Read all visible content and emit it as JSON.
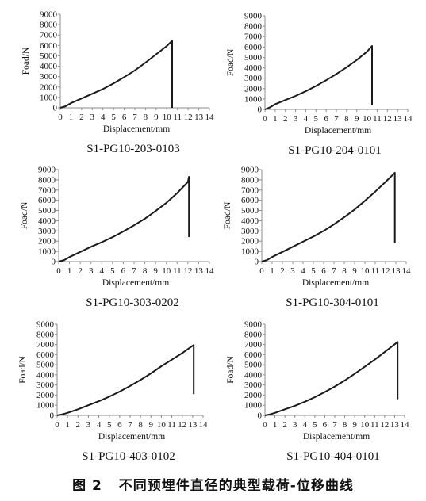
{
  "figure": {
    "number": "图 2",
    "caption": "不同预埋件直径的典型载荷-位移曲线"
  },
  "colors": {
    "line": "#1a1a1a",
    "axis": "#8c8c8c",
    "text": "#111111"
  },
  "chart_data": [
    {
      "type": "line",
      "title": "S1-PG10-203-0103",
      "xlabel": "Displacement/mm",
      "ylabel": "Foad/N",
      "xlim": [
        0,
        14
      ],
      "ylim": [
        0,
        9000
      ],
      "xticks": [
        "0",
        "1",
        "2",
        "3",
        "4",
        "5",
        "6",
        "7",
        "8",
        "9",
        "10",
        "11",
        "12",
        "13",
        "14"
      ],
      "yticks": [
        "0",
        "1000",
        "2000",
        "3000",
        "4000",
        "5000",
        "6000",
        "7000",
        "8000",
        "9000"
      ],
      "grid": false,
      "series": [
        {
          "x": [
            0,
            0.5,
            1,
            2,
            3,
            4,
            5,
            6,
            7,
            8,
            9,
            10,
            10.5,
            10.5
          ],
          "y": [
            0,
            150,
            450,
            900,
            1350,
            1800,
            2350,
            2950,
            3600,
            4350,
            5150,
            5950,
            6450,
            0
          ]
        }
      ]
    },
    {
      "type": "line",
      "title": "S1-PG10-204-0101",
      "xlabel": "Displacement/mm",
      "ylabel": "Foad/N",
      "xlim": [
        0,
        14
      ],
      "ylim": [
        0,
        9000
      ],
      "xticks": [
        "0",
        "1",
        "2",
        "3",
        "4",
        "5",
        "6",
        "7",
        "8",
        "9",
        "10",
        "11",
        "12",
        "13",
        "14"
      ],
      "yticks": [
        "0",
        "1000",
        "2000",
        "3000",
        "4000",
        "5000",
        "6000",
        "7000",
        "8000",
        "9000"
      ],
      "grid": false,
      "series": [
        {
          "x": [
            0,
            0.5,
            1,
            2,
            3,
            4,
            5,
            6,
            7,
            8,
            9,
            10,
            10.5,
            10.5
          ],
          "y": [
            0,
            200,
            500,
            900,
            1300,
            1750,
            2250,
            2800,
            3400,
            4050,
            4750,
            5550,
            6100,
            400
          ]
        }
      ]
    },
    {
      "type": "line",
      "title": "S1-PG10-303-0202",
      "xlabel": "Displacement/mm",
      "ylabel": "Foad/N",
      "xlim": [
        0,
        14
      ],
      "ylim": [
        0,
        9000
      ],
      "xticks": [
        "0",
        "1",
        "2",
        "3",
        "4",
        "5",
        "6",
        "7",
        "8",
        "9",
        "10",
        "11",
        "12",
        "13",
        "14"
      ],
      "yticks": [
        "0",
        "1000",
        "2000",
        "3000",
        "4000",
        "5000",
        "6000",
        "7000",
        "8000",
        "9000"
      ],
      "grid": false,
      "series": [
        {
          "x": [
            0,
            0.5,
            1,
            2,
            3,
            4,
            5,
            6,
            7,
            8,
            9,
            10,
            11,
            12,
            12.1,
            12.1
          ],
          "y": [
            0,
            150,
            450,
            950,
            1450,
            1900,
            2400,
            2950,
            3550,
            4200,
            4950,
            5750,
            6700,
            7800,
            8300,
            2400
          ]
        }
      ]
    },
    {
      "type": "line",
      "title": "S1-PG10-304-0101",
      "xlabel": "Displacement/mm",
      "ylabel": "Foad/N",
      "xlim": [
        0,
        14
      ],
      "ylim": [
        0,
        9000
      ],
      "xticks": [
        "0",
        "1",
        "2",
        "3",
        "4",
        "5",
        "6",
        "7",
        "8",
        "9",
        "10",
        "11",
        "12",
        "13",
        "14"
      ],
      "yticks": [
        "0",
        "1000",
        "2000",
        "3000",
        "4000",
        "5000",
        "6000",
        "7000",
        "8000",
        "9000"
      ],
      "grid": false,
      "series": [
        {
          "x": [
            0,
            0.5,
            1,
            2,
            3,
            4,
            5,
            6,
            7,
            8,
            9,
            10,
            11,
            12,
            12.9,
            12.9
          ],
          "y": [
            0,
            150,
            450,
            950,
            1450,
            1950,
            2450,
            3000,
            3650,
            4350,
            5100,
            5950,
            6850,
            7800,
            8700,
            1800
          ]
        }
      ]
    },
    {
      "type": "line",
      "title": "S1-PG10-403-0102",
      "xlabel": "Displacement/mm",
      "ylabel": "Foad/N",
      "xlim": [
        0,
        14
      ],
      "ylim": [
        0,
        9000
      ],
      "xticks": [
        "0",
        "1",
        "2",
        "3",
        "4",
        "5",
        "6",
        "7",
        "8",
        "9",
        "10",
        "11",
        "12",
        "13",
        "14"
      ],
      "yticks": [
        "0",
        "1000",
        "2000",
        "3000",
        "4000",
        "5000",
        "6000",
        "7000",
        "8000",
        "9000"
      ],
      "grid": false,
      "series": [
        {
          "x": [
            0,
            0.5,
            1,
            2,
            3,
            4,
            5,
            6,
            7,
            8,
            9,
            10,
            11,
            12,
            13.1,
            13.1
          ],
          "y": [
            0,
            100,
            250,
            600,
            1000,
            1400,
            1850,
            2350,
            2900,
            3500,
            4150,
            4850,
            5500,
            6150,
            6950,
            2100
          ]
        }
      ]
    },
    {
      "type": "line",
      "title": "S1-PG10-404-0101",
      "xlabel": "Displacement/mm",
      "ylabel": "Foad/N",
      "xlim": [
        0,
        14
      ],
      "ylim": [
        0,
        9000
      ],
      "xticks": [
        "0",
        "1",
        "2",
        "3",
        "4",
        "5",
        "6",
        "7",
        "8",
        "9",
        "10",
        "11",
        "12",
        "13",
        "14"
      ],
      "yticks": [
        "0",
        "1000",
        "2000",
        "3000",
        "4000",
        "5000",
        "6000",
        "7000",
        "8000",
        "9000"
      ],
      "grid": false,
      "series": [
        {
          "x": [
            0,
            0.5,
            1,
            2,
            3,
            4,
            5,
            6,
            7,
            8,
            9,
            10,
            11,
            12,
            13.3,
            13.3
          ],
          "y": [
            0,
            100,
            250,
            600,
            950,
            1350,
            1800,
            2300,
            2850,
            3450,
            4100,
            4800,
            5500,
            6250,
            7250,
            1600
          ]
        }
      ]
    }
  ]
}
